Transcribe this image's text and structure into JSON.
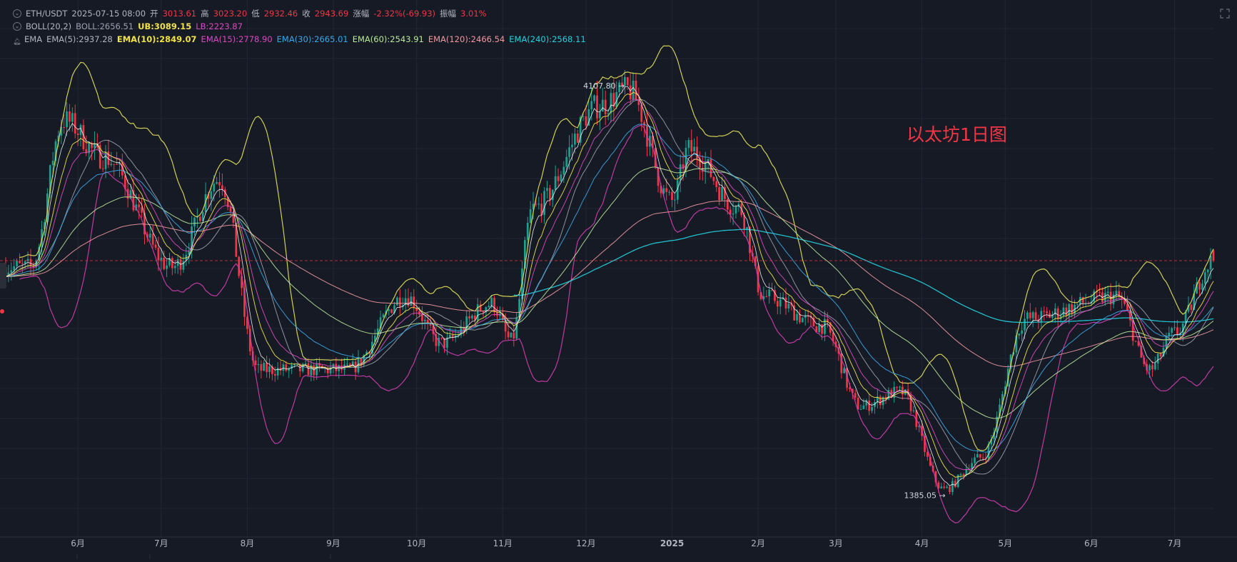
{
  "legend": {
    "symbol": "ETH/USDT",
    "datetime": "2025-07-15 08:00",
    "open_label": "开",
    "open": "3013.61",
    "high_label": "高",
    "high": "3023.20",
    "low_label": "低",
    "low": "2932.46",
    "close_label": "收",
    "close": "2943.69",
    "change_label": "涨幅",
    "change": "-2.32%(-69.93)",
    "amp_label": "振幅",
    "amp": "3.01%",
    "boll_name": "BOLL(20,2)",
    "boll_mid": "BOLL:2656.51",
    "boll_ub": "UB:3089.15",
    "boll_lb": "LB:2223.87",
    "ema_name": "EMA",
    "ema5": "EMA(5):2937.28",
    "ema10": "EMA(10):2849.07",
    "ema15": "EMA(15):2778.90",
    "ema30": "EMA(30):2665.01",
    "ema60": "EMA(60):2543.91",
    "ema120": "EMA(120):2466.54",
    "ema240": "EMA(240):2568.11"
  },
  "annotation": "以太坊1日图",
  "markers": {
    "high": "4107.80 →",
    "low": "1385.05 →"
  },
  "colors": {
    "bg": "#161a25",
    "grid": "#222634",
    "up": "#1f9e8f",
    "down": "#f23645",
    "ub": "#e6e35a",
    "lb": "#d03fb0",
    "mid": "#9aa0b0",
    "ema5": "#ffffff",
    "ema10": "#f0e24a",
    "ema15": "#d94bc0",
    "ema30": "#3aa8e8",
    "ema60": "#b9e89a",
    "ema120": "#f09aa0",
    "ema240": "#22d3df",
    "annotation": "#f23645",
    "axis_text": "#b2b5be"
  },
  "chart_data": {
    "type": "candlestick",
    "x_labels": [
      "6月",
      "7月",
      "8月",
      "9月",
      "10月",
      "11月",
      "12月",
      "2025",
      "2月",
      "3月",
      "4月",
      "5月",
      "6月",
      "7月"
    ],
    "key_points": [
      {
        "date": "2024-05-15",
        "price": 2900
      },
      {
        "date": "2024-05-27",
        "price": 3900
      },
      {
        "date": "2024-06-10",
        "price": 3650
      },
      {
        "date": "2024-07-05",
        "price": 2900
      },
      {
        "date": "2024-07-22",
        "price": 3500
      },
      {
        "date": "2024-08-05",
        "price": 2200
      },
      {
        "date": "2024-09-06",
        "price": 2200
      },
      {
        "date": "2024-09-27",
        "price": 2700
      },
      {
        "date": "2024-10-10",
        "price": 2380
      },
      {
        "date": "2024-10-28",
        "price": 2650
      },
      {
        "date": "2024-11-04",
        "price": 2400
      },
      {
        "date": "2024-11-12",
        "price": 3300
      },
      {
        "date": "2024-12-06",
        "price": 4000
      },
      {
        "date": "2024-12-16",
        "price": 4107.8
      },
      {
        "date": "2025-01-01",
        "price": 3350
      },
      {
        "date": "2025-01-07",
        "price": 3700
      },
      {
        "date": "2025-01-25",
        "price": 3300
      },
      {
        "date": "2025-02-03",
        "price": 2700
      },
      {
        "date": "2025-02-24",
        "price": 2500
      },
      {
        "date": "2025-03-10",
        "price": 1950
      },
      {
        "date": "2025-03-24",
        "price": 2050
      },
      {
        "date": "2025-04-09",
        "price": 1385.05
      },
      {
        "date": "2025-04-22",
        "price": 1600
      },
      {
        "date": "2025-05-09",
        "price": 2550
      },
      {
        "date": "2025-06-10",
        "price": 2700
      },
      {
        "date": "2025-06-22",
        "price": 2200
      },
      {
        "date": "2025-07-01",
        "price": 2450
      },
      {
        "date": "2025-07-15",
        "price": 2943.69
      }
    ],
    "series": [
      {
        "name": "BOLL(20,2)",
        "value": 2656.51
      },
      {
        "name": "UB",
        "value": 3089.15
      },
      {
        "name": "LB",
        "value": 2223.87
      },
      {
        "name": "EMA(5)",
        "value": 2937.28
      },
      {
        "name": "EMA(10)",
        "value": 2849.07
      },
      {
        "name": "EMA(15)",
        "value": 2778.9
      },
      {
        "name": "EMA(30)",
        "value": 2665.01
      },
      {
        "name": "EMA(60)",
        "value": 2543.91
      },
      {
        "name": "EMA(120)",
        "value": 2466.54
      },
      {
        "name": "EMA(240)",
        "value": 2568.11
      }
    ],
    "ohlc_last": {
      "open": 3013.61,
      "high": 3023.2,
      "low": 2932.46,
      "close": 2943.69
    },
    "current_price": 2943.69,
    "high_marker": 4107.8,
    "low_marker": 1385.05,
    "grid": true
  }
}
